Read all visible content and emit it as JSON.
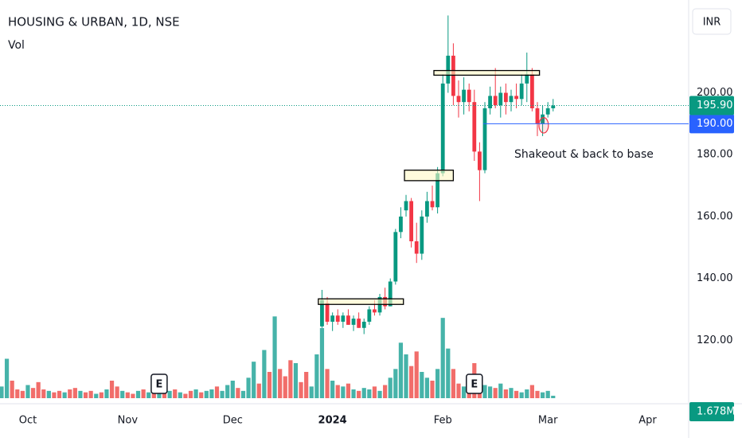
{
  "chart_data": {
    "type": "candlestick",
    "title": "HOUSING & URBAN, 1D, NSE",
    "subtitle": "Vol",
    "currency": "INR",
    "annotation": "Shakeout & back to base",
    "xlim": [
      -0.3,
      130.8
    ],
    "ylim": [
      100,
      230
    ],
    "vlim": [
      0,
      60
    ],
    "xticks": [
      {
        "value": 5,
        "label": "Oct"
      },
      {
        "value": 24,
        "label": "Nov"
      },
      {
        "value": 44,
        "label": "Dec"
      },
      {
        "value": 63,
        "label": "2024"
      },
      {
        "value": 84,
        "label": "Feb"
      },
      {
        "value": 104,
        "label": "Mar"
      },
      {
        "value": 123,
        "label": "Apr"
      }
    ],
    "yticks": [
      {
        "value": 120,
        "label": "120.00"
      },
      {
        "value": 140,
        "label": "140.00"
      },
      {
        "value": 160,
        "label": "160.00"
      },
      {
        "value": 180,
        "label": "180.00"
      },
      {
        "value": 200,
        "label": "200.00"
      }
    ],
    "up_color": "#089981",
    "down_color": "#f23645",
    "candles": {
      "x": [
        61,
        62,
        63,
        64,
        65,
        66,
        67,
        68,
        69,
        70,
        71,
        72,
        73,
        74,
        75,
        76,
        77,
        78,
        79,
        80,
        81,
        82,
        83,
        84,
        85,
        86,
        87,
        88,
        89,
        90,
        91,
        92,
        93,
        94,
        95,
        96,
        97,
        98,
        99,
        100,
        101,
        102,
        103,
        104,
        105
      ],
      "open": [
        124.5,
        132,
        126,
        128,
        126,
        128,
        125,
        127,
        124,
        126,
        130,
        129,
        134,
        131,
        139,
        155,
        162,
        165,
        152,
        148,
        160,
        165,
        163,
        174,
        203,
        212,
        199,
        197,
        201,
        197,
        181,
        175,
        195,
        199,
        196,
        200,
        197,
        199,
        198,
        203,
        206,
        195,
        190,
        193,
        195
      ],
      "high": [
        136.3,
        134,
        129,
        130,
        129,
        130,
        128,
        129,
        127,
        131,
        133,
        135,
        137,
        140,
        156,
        163,
        167,
        166,
        158,
        162,
        168,
        170,
        176,
        206,
        225,
        216,
        204,
        205,
        203,
        201,
        184,
        197,
        202,
        208,
        202,
        203,
        201,
        203,
        206,
        213,
        208,
        197,
        196,
        197,
        198
      ],
      "low": [
        124,
        125,
        123,
        125,
        124,
        125,
        123,
        124,
        122,
        125,
        128,
        128,
        130,
        131,
        138,
        153,
        160,
        150,
        145,
        146,
        158,
        162,
        161,
        173,
        200,
        196,
        192,
        193,
        194,
        178,
        165,
        174,
        193,
        195,
        192,
        193,
        194,
        195,
        196,
        197,
        194,
        186,
        186,
        192,
        194
      ],
      "close": [
        133,
        126,
        128,
        126,
        128,
        125,
        127,
        124,
        126,
        130,
        129,
        134,
        131,
        139,
        155,
        160,
        165,
        152,
        148,
        160,
        165,
        163,
        174,
        203,
        212,
        199,
        197,
        201,
        197,
        181,
        175,
        195,
        199,
        196,
        200,
        197,
        199,
        198,
        203,
        206,
        195,
        190,
        193,
        195,
        195.9
      ]
    },
    "volume": {
      "x": [
        0,
        1,
        2,
        3,
        4,
        5,
        6,
        7,
        8,
        9,
        10,
        11,
        12,
        13,
        14,
        15,
        16,
        17,
        18,
        19,
        20,
        21,
        22,
        23,
        24,
        25,
        26,
        27,
        28,
        29,
        30,
        31,
        32,
        33,
        34,
        35,
        36,
        37,
        38,
        39,
        40,
        41,
        42,
        43,
        44,
        45,
        46,
        47,
        48,
        49,
        50,
        51,
        52,
        53,
        54,
        55,
        56,
        57,
        58,
        59,
        60,
        61,
        62,
        63,
        64,
        65,
        66,
        67,
        68,
        69,
        70,
        71,
        72,
        73,
        74,
        75,
        76,
        77,
        78,
        79,
        80,
        81,
        82,
        83,
        84,
        85,
        86,
        87,
        88,
        89,
        90,
        91,
        92,
        93,
        94,
        95,
        96,
        97,
        98,
        99,
        100,
        101,
        102,
        103,
        104,
        105
      ],
      "values": [
        8,
        27,
        12,
        6,
        5,
        9,
        7,
        11,
        6,
        5,
        4,
        5,
        4,
        6,
        7,
        5,
        4,
        5,
        3,
        4,
        6,
        12,
        8,
        5,
        4,
        3,
        5,
        6,
        4,
        7,
        3,
        4,
        5,
        6,
        4,
        3,
        5,
        6,
        4,
        5,
        6,
        8,
        5,
        9,
        12,
        7,
        5,
        14,
        25,
        10,
        33,
        18,
        56,
        20,
        15,
        26,
        24,
        11,
        18,
        8,
        30,
        48,
        20,
        12,
        9,
        8,
        10,
        6,
        5,
        7,
        6,
        8,
        5,
        9,
        14,
        20,
        38,
        30,
        22,
        32,
        18,
        14,
        12,
        20,
        55,
        34,
        20,
        10,
        8,
        12,
        24,
        14,
        9,
        8,
        7,
        10,
        6,
        7,
        5,
        4,
        6,
        9,
        5,
        4,
        5,
        1.678
      ],
      "colors": [
        "#26a69a",
        "#26a69a",
        "#ef5350",
        "#ef5350",
        "#ef5350",
        "#26a69a",
        "#ef5350",
        "#ef5350",
        "#ef5350",
        "#26a69a",
        "#ef5350",
        "#ef5350",
        "#26a69a",
        "#ef5350",
        "#ef5350",
        "#26a69a",
        "#ef5350",
        "#ef5350",
        "#26a69a",
        "#ef5350",
        "#26a69a",
        "#ef5350",
        "#ef5350",
        "#26a69a",
        "#ef5350",
        "#ef5350",
        "#26a69a",
        "#ef5350",
        "#26a69a",
        "#ef5350",
        "#26a69a",
        "#ef5350",
        "#26a69a",
        "#ef5350",
        "#26a69a",
        "#ef5350",
        "#ef5350",
        "#26a69a",
        "#ef5350",
        "#26a69a",
        "#26a69a",
        "#ef5350",
        "#26a69a",
        "#26a69a",
        "#26a69a",
        "#ef5350",
        "#26a69a",
        "#26a69a",
        "#26a69a",
        "#ef5350",
        "#26a69a",
        "#ef5350",
        "#26a69a",
        "#ef5350",
        "#ef5350",
        "#ef5350",
        "#26a69a",
        "#ef5350",
        "#ef5350",
        "#26a69a",
        "#26a69a",
        "#26a69a",
        "#ef5350",
        "#26a69a",
        "#ef5350",
        "#26a69a",
        "#ef5350",
        "#26a69a",
        "#ef5350",
        "#26a69a",
        "#26a69a",
        "#ef5350",
        "#26a69a",
        "#ef5350",
        "#26a69a",
        "#26a69a",
        "#26a69a",
        "#26a69a",
        "#ef5350",
        "#ef5350",
        "#26a69a",
        "#26a69a",
        "#ef5350",
        "#26a69a",
        "#26a69a",
        "#26a69a",
        "#ef5350",
        "#ef5350",
        "#26a69a",
        "#ef5350",
        "#ef5350",
        "#ef5350",
        "#26a69a",
        "#26a69a",
        "#ef5350",
        "#26a69a",
        "#ef5350",
        "#26a69a",
        "#ef5350",
        "#26a69a",
        "#26a69a",
        "#ef5350",
        "#ef5350",
        "#26a69a",
        "#26a69a",
        "#26a69a"
      ],
      "last_label": "1.678M"
    },
    "last_price": {
      "value": 195.9,
      "label": "195.90"
    },
    "level": {
      "value": 190,
      "label": "190.00",
      "from": 91.7,
      "color": "#2962ff"
    },
    "boxes": [
      {
        "x": [
          82.3,
          102.4
        ],
        "y": [
          205.7,
          207.2
        ]
      },
      {
        "x": [
          76.7,
          86
        ],
        "y": [
          171.6,
          175
        ]
      },
      {
        "x": [
          60.3,
          76.5
        ],
        "y": [
          131.6,
          133.4
        ]
      }
    ],
    "ellipse": {
      "x": [
        102.3,
        104.1
      ],
      "y": [
        187,
        192
      ],
      "color": "#f23645"
    },
    "earnings": {
      "x": [
        30,
        90
      ],
      "label": "E"
    }
  }
}
